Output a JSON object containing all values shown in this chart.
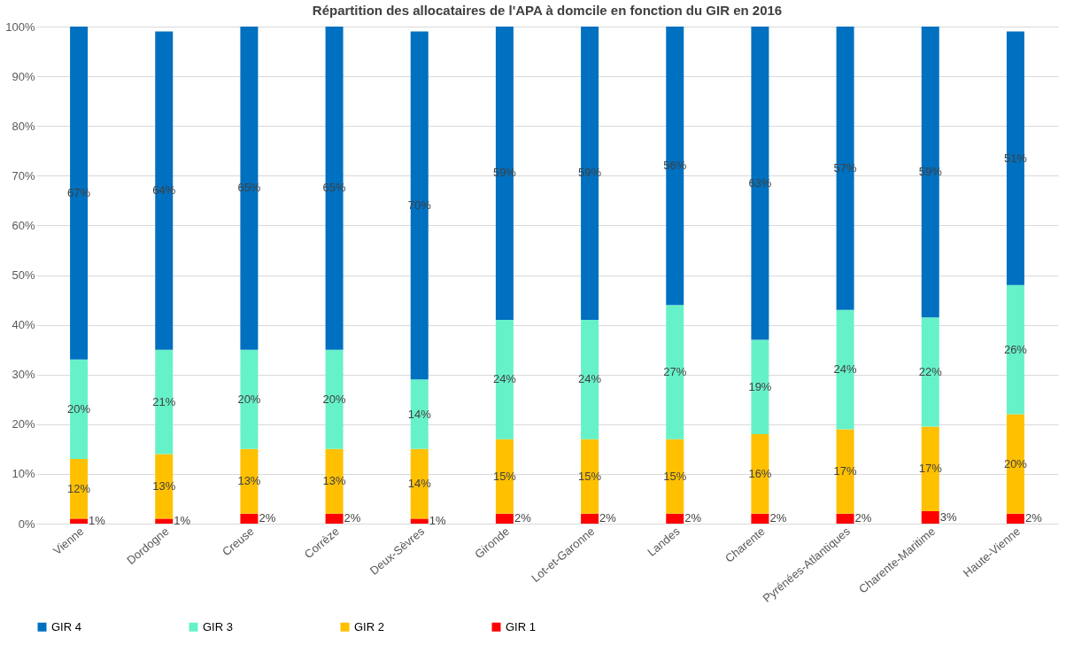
{
  "chart_data": {
    "type": "bar",
    "stacked": true,
    "title": "Répartition des allocataires de l'APA à domcile en fonction du GIR en 2016",
    "categories": [
      "Vienne",
      "Dordogne",
      "Creuse",
      "Corrèze",
      "Deux-Sèvres",
      "Gironde",
      "Lot-et-Garonne",
      "Landes",
      "Charente",
      "Pyrénées-Atlantiques",
      "Charente-Maritime",
      "Haute-Vienne"
    ],
    "series": [
      {
        "name": "GIR 1",
        "color": "#ff0000",
        "values": [
          1,
          1,
          2,
          2,
          1,
          2,
          2,
          2,
          2,
          2,
          2.5,
          2
        ],
        "value_labels": [
          "1%",
          "1%",
          "2%",
          "2%",
          "1%",
          "2%",
          "2%",
          "2%",
          "2%",
          "2%",
          "3%",
          "2%"
        ]
      },
      {
        "name": "GIR 2",
        "color": "#ffc000",
        "values": [
          12,
          13,
          13,
          13,
          14,
          15,
          15,
          15,
          16,
          17,
          17,
          20
        ],
        "value_labels": [
          "12%",
          "13%",
          "13%",
          "13%",
          "14%",
          "15%",
          "15%",
          "15%",
          "16%",
          "17%",
          "17%",
          "20%"
        ]
      },
      {
        "name": "GIR 3",
        "color": "#66f2c8",
        "values": [
          20,
          21,
          20,
          20,
          14,
          24,
          24,
          27,
          19,
          24,
          22,
          26
        ],
        "value_labels": [
          "20%",
          "21%",
          "20%",
          "20%",
          "14%",
          "24%",
          "24%",
          "27%",
          "19%",
          "24%",
          "22%",
          "26%"
        ]
      },
      {
        "name": "GIR 4",
        "color": "#0070c0",
        "values": [
          67,
          64,
          65,
          65,
          70,
          59,
          59,
          56,
          63,
          57,
          58.5,
          51
        ],
        "value_labels": [
          "67%",
          "64%",
          "65%",
          "65%",
          "70%",
          "59%",
          "59%",
          "56%",
          "63%",
          "57%",
          "59%",
          "51%"
        ]
      }
    ],
    "ylim": [
      0,
      100
    ],
    "yticks": [
      {
        "value": 0,
        "label": "0%"
      },
      {
        "value": 10,
        "label": "10%"
      },
      {
        "value": 20,
        "label": "20%"
      },
      {
        "value": 30,
        "label": "30%"
      },
      {
        "value": 40,
        "label": "40%"
      },
      {
        "value": 50,
        "label": "50%"
      },
      {
        "value": 60,
        "label": "60%"
      },
      {
        "value": 70,
        "label": "70%"
      },
      {
        "value": 80,
        "label": "80%"
      },
      {
        "value": 90,
        "label": "90%"
      },
      {
        "value": 100,
        "label": "100%"
      }
    ],
    "grid": "y",
    "legend": "bottom"
  }
}
